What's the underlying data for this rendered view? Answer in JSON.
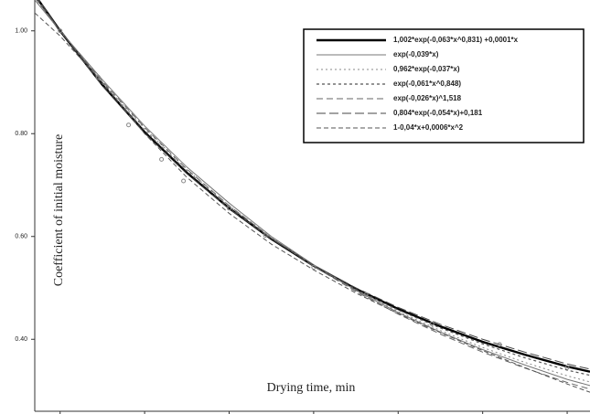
{
  "chart_data": {
    "type": "line",
    "xlabel": "Drying time, min",
    "ylabel": "Coefficient of initial moisture",
    "xlim": [
      -0.3,
      6.27
    ],
    "xticks": [
      0,
      1,
      2,
      3,
      4,
      5,
      6
    ],
    "ylim": [
      0.26,
      1.06
    ],
    "yticks": [
      {
        "value": 0.4,
        "label": "0.40"
      },
      {
        "value": 0.6,
        "label": "0.60"
      },
      {
        "value": 0.8,
        "label": "0.80"
      },
      {
        "value": 1,
        "label": "1.00"
      }
    ],
    "legend": "upper right",
    "x": [
      -0.3,
      0,
      0.5,
      1,
      1.5,
      2,
      2.5,
      3,
      3.5,
      4,
      4.5,
      5,
      5.5,
      6,
      6.27
    ],
    "series": [
      {
        "name": "1,002*exp(-0,063*x^0,831) +0,0001*x",
        "color": "#000000",
        "width": 2.4,
        "dash": "none",
        "values": [
          1.07,
          1.0,
          0.895,
          0.803,
          0.724,
          0.655,
          0.595,
          0.543,
          0.498,
          0.459,
          0.425,
          0.395,
          0.37,
          0.347,
          0.337
        ]
      },
      {
        "name": "exp(-0,039*x)",
        "color": "#777777",
        "width": 1,
        "dash": "none",
        "values": [
          1.06,
          1.0,
          0.905,
          0.815,
          0.735,
          0.665,
          0.6,
          0.545,
          0.495,
          0.452,
          0.414,
          0.38,
          0.35,
          0.322,
          0.31
        ]
      },
      {
        "name": "0,962*exp(-0,037*x)",
        "color": "#888888",
        "width": 1,
        "dash": "2 3",
        "values": [
          1.062,
          1.0,
          0.9,
          0.81,
          0.73,
          0.66,
          0.598,
          0.544,
          0.496,
          0.454,
          0.417,
          0.384,
          0.355,
          0.329,
          0.317
        ]
      },
      {
        "name": "exp(-0,061*x^0,848)",
        "color": "#555555",
        "width": 1.2,
        "dash": "3 3",
        "values": [
          1.068,
          1.0,
          0.897,
          0.806,
          0.727,
          0.657,
          0.596,
          0.543,
          0.497,
          0.457,
          0.422,
          0.391,
          0.364,
          0.34,
          0.33
        ]
      },
      {
        "name": "exp(-0,026*x)^1,518",
        "color": "#666666",
        "width": 1,
        "dash": "7 4",
        "values": [
          1.065,
          1.0,
          0.902,
          0.812,
          0.731,
          0.66,
          0.597,
          0.542,
          0.493,
          0.449,
          0.41,
          0.375,
          0.344,
          0.316,
          0.303
        ]
      },
      {
        "name": "0,804*exp(-0,054*x)+0,181",
        "color": "#444444",
        "width": 1,
        "dash": "10 4",
        "values": [
          1.072,
          1.0,
          0.893,
          0.801,
          0.722,
          0.654,
          0.595,
          0.544,
          0.5,
          0.462,
          0.429,
          0.4,
          0.375,
          0.352,
          0.342
        ]
      },
      {
        "name": "1-0,04*x+0,0006*x^2",
        "color": "#555555",
        "width": 1,
        "dash": "5 3",
        "values": [
          1.035,
          0.99,
          0.9,
          0.8,
          0.715,
          0.645,
          0.585,
          0.535,
          0.49,
          0.45,
          0.413,
          0.378,
          0.345,
          0.313,
          0.297
        ]
      }
    ],
    "points": {
      "color": "#888888",
      "x": [
        0,
        0.45,
        0.81,
        1.2,
        1.46,
        2,
        2.43,
        3,
        3.62,
        4.4,
        5.2,
        6
      ],
      "y": [
        1.0,
        0.91,
        0.817,
        0.75,
        0.708,
        0.655,
        0.602,
        0.54,
        0.487,
        0.43,
        0.39,
        0.345
      ]
    }
  }
}
